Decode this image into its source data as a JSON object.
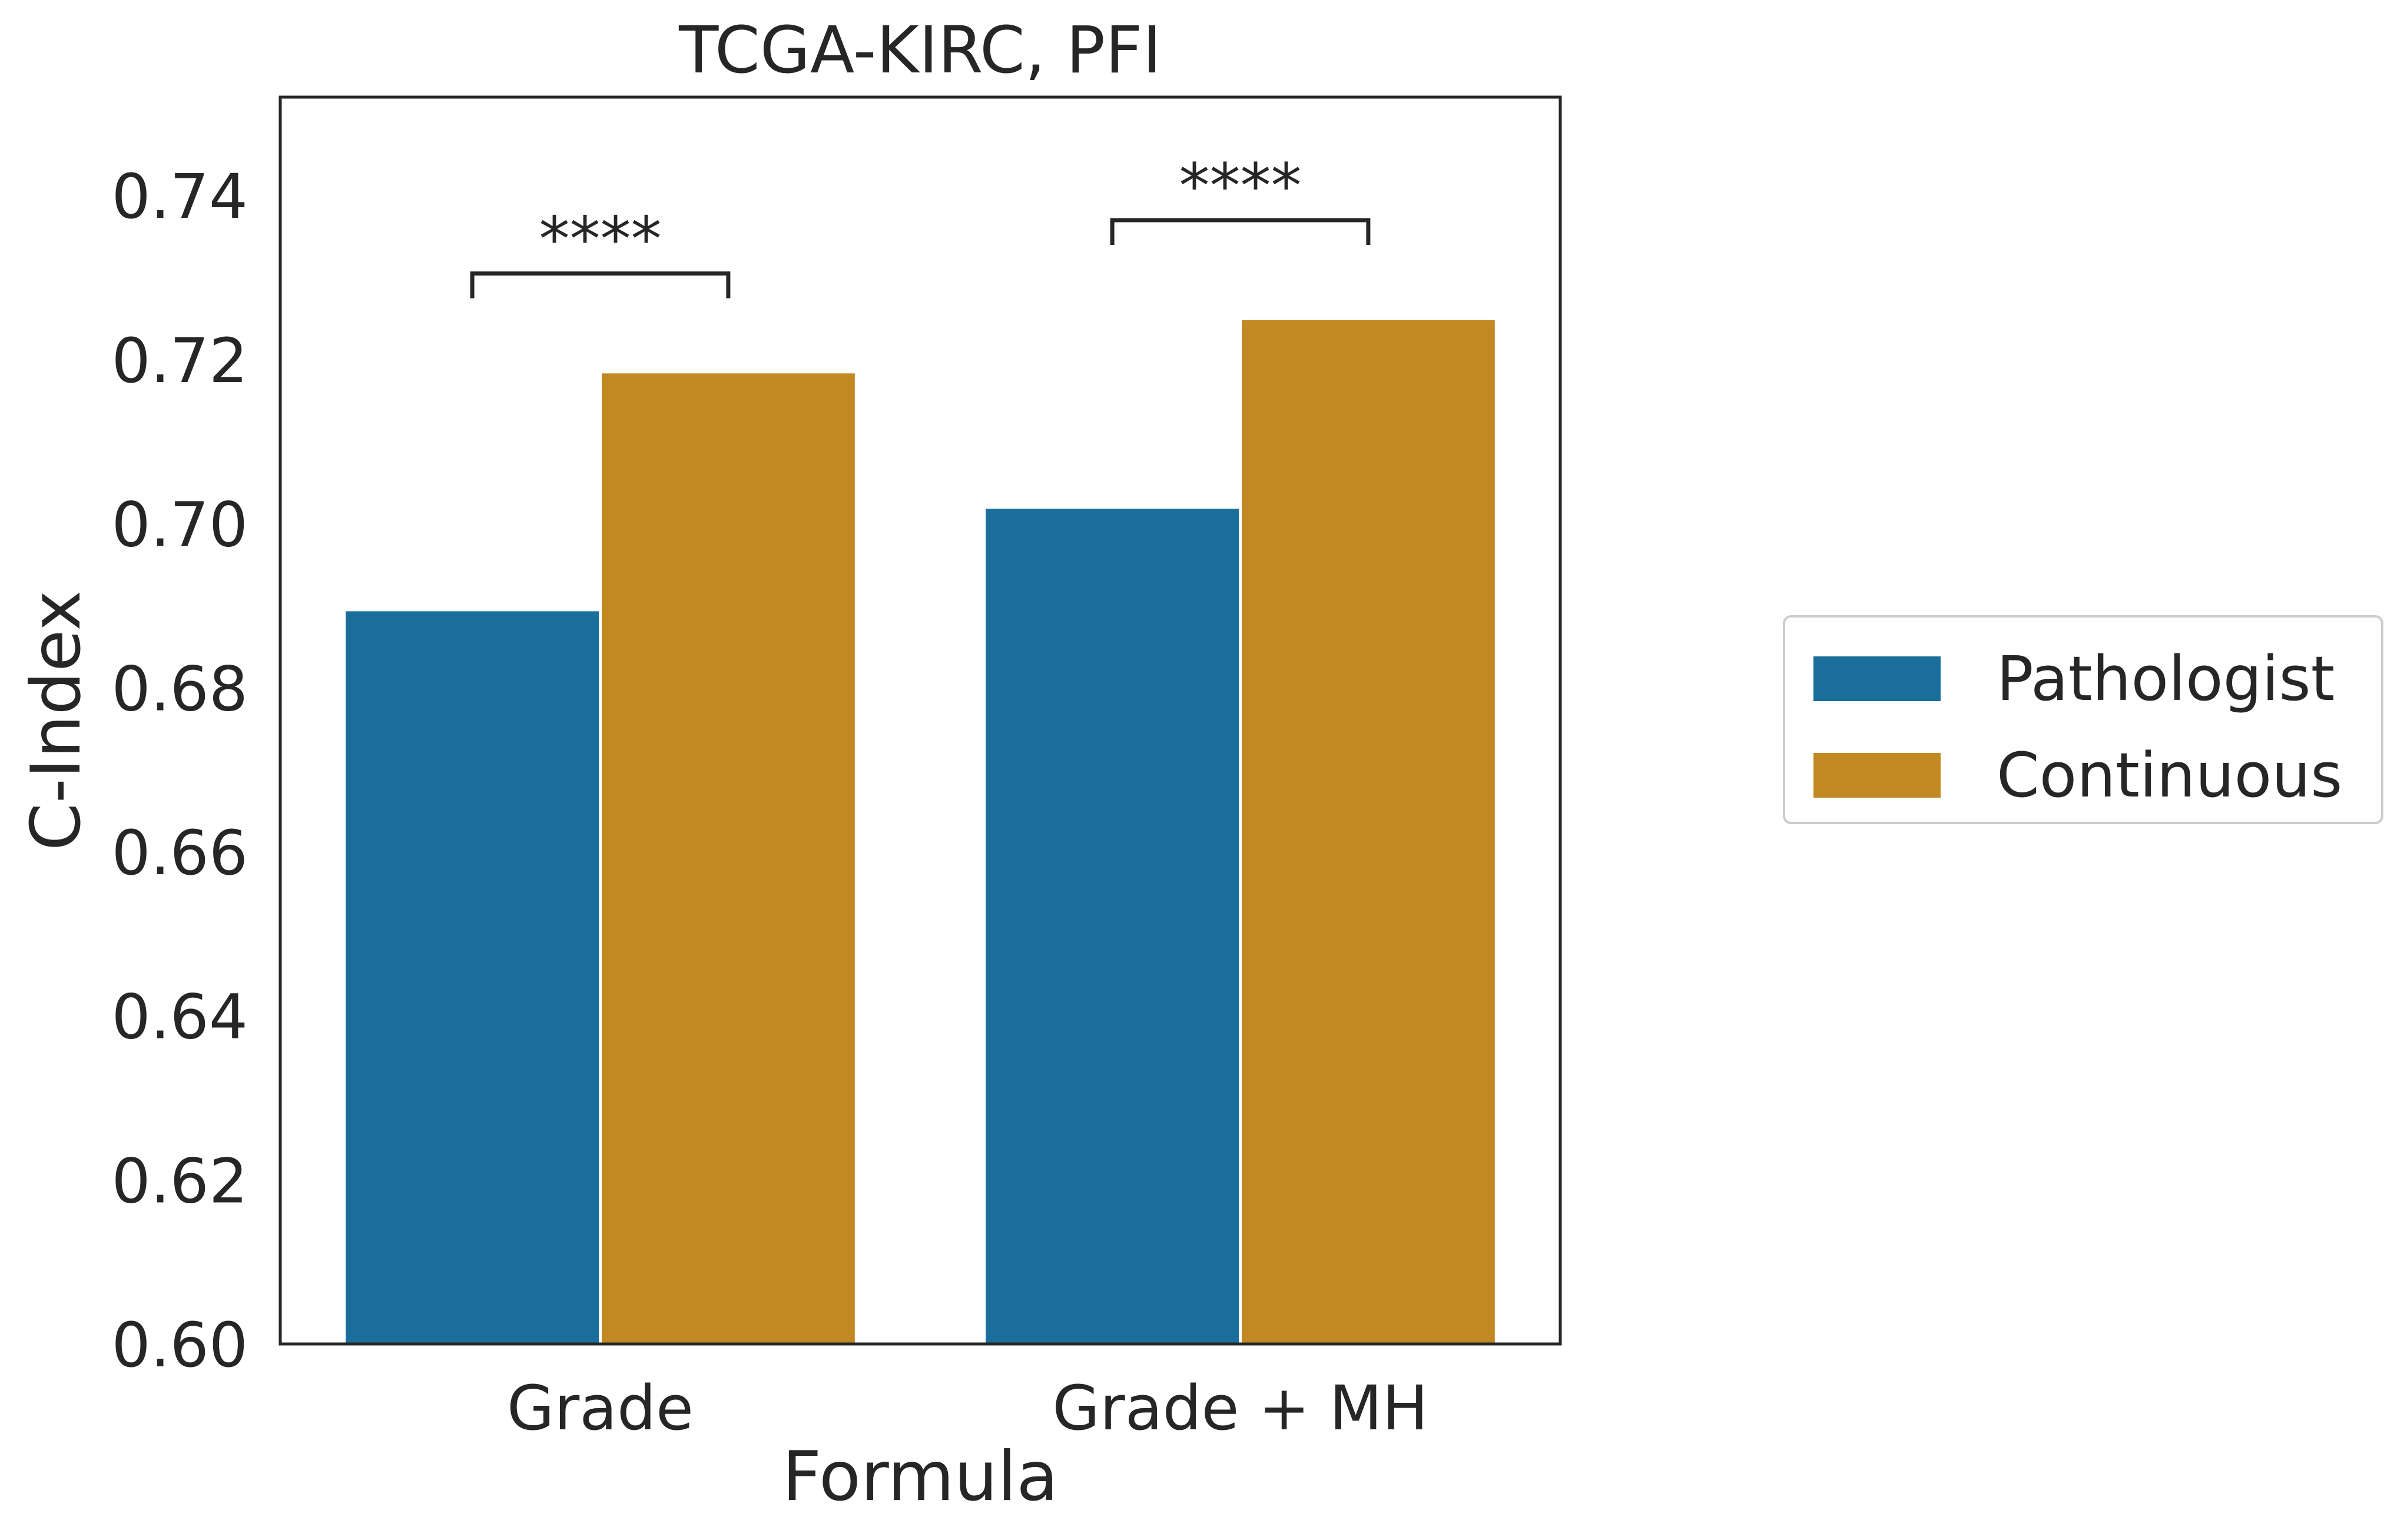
{
  "chart_data": {
    "type": "bar",
    "title": "TCGA-KIRC, PFI",
    "xlabel": "Formula",
    "ylabel": "C-Index",
    "categories": [
      "Grade",
      "Grade + MH"
    ],
    "series": [
      {
        "name": "Pathologist",
        "color": "#1a6e9c",
        "values": [
          0.6895,
          0.702
        ]
      },
      {
        "name": "Continuous",
        "color": "#c28822",
        "values": [
          0.7185,
          0.725
        ]
      }
    ],
    "ylim": [
      0.6,
      0.752
    ],
    "yticks": [
      "0.60",
      "0.62",
      "0.64",
      "0.66",
      "0.68",
      "0.70",
      "0.72",
      "0.74"
    ],
    "grid": false,
    "legend_position": "right",
    "annotations": [
      {
        "category": "Grade",
        "text": "****",
        "bracket_y": 0.7305
      },
      {
        "category": "Grade + MH",
        "text": "****",
        "bracket_y": 0.737
      }
    ]
  }
}
